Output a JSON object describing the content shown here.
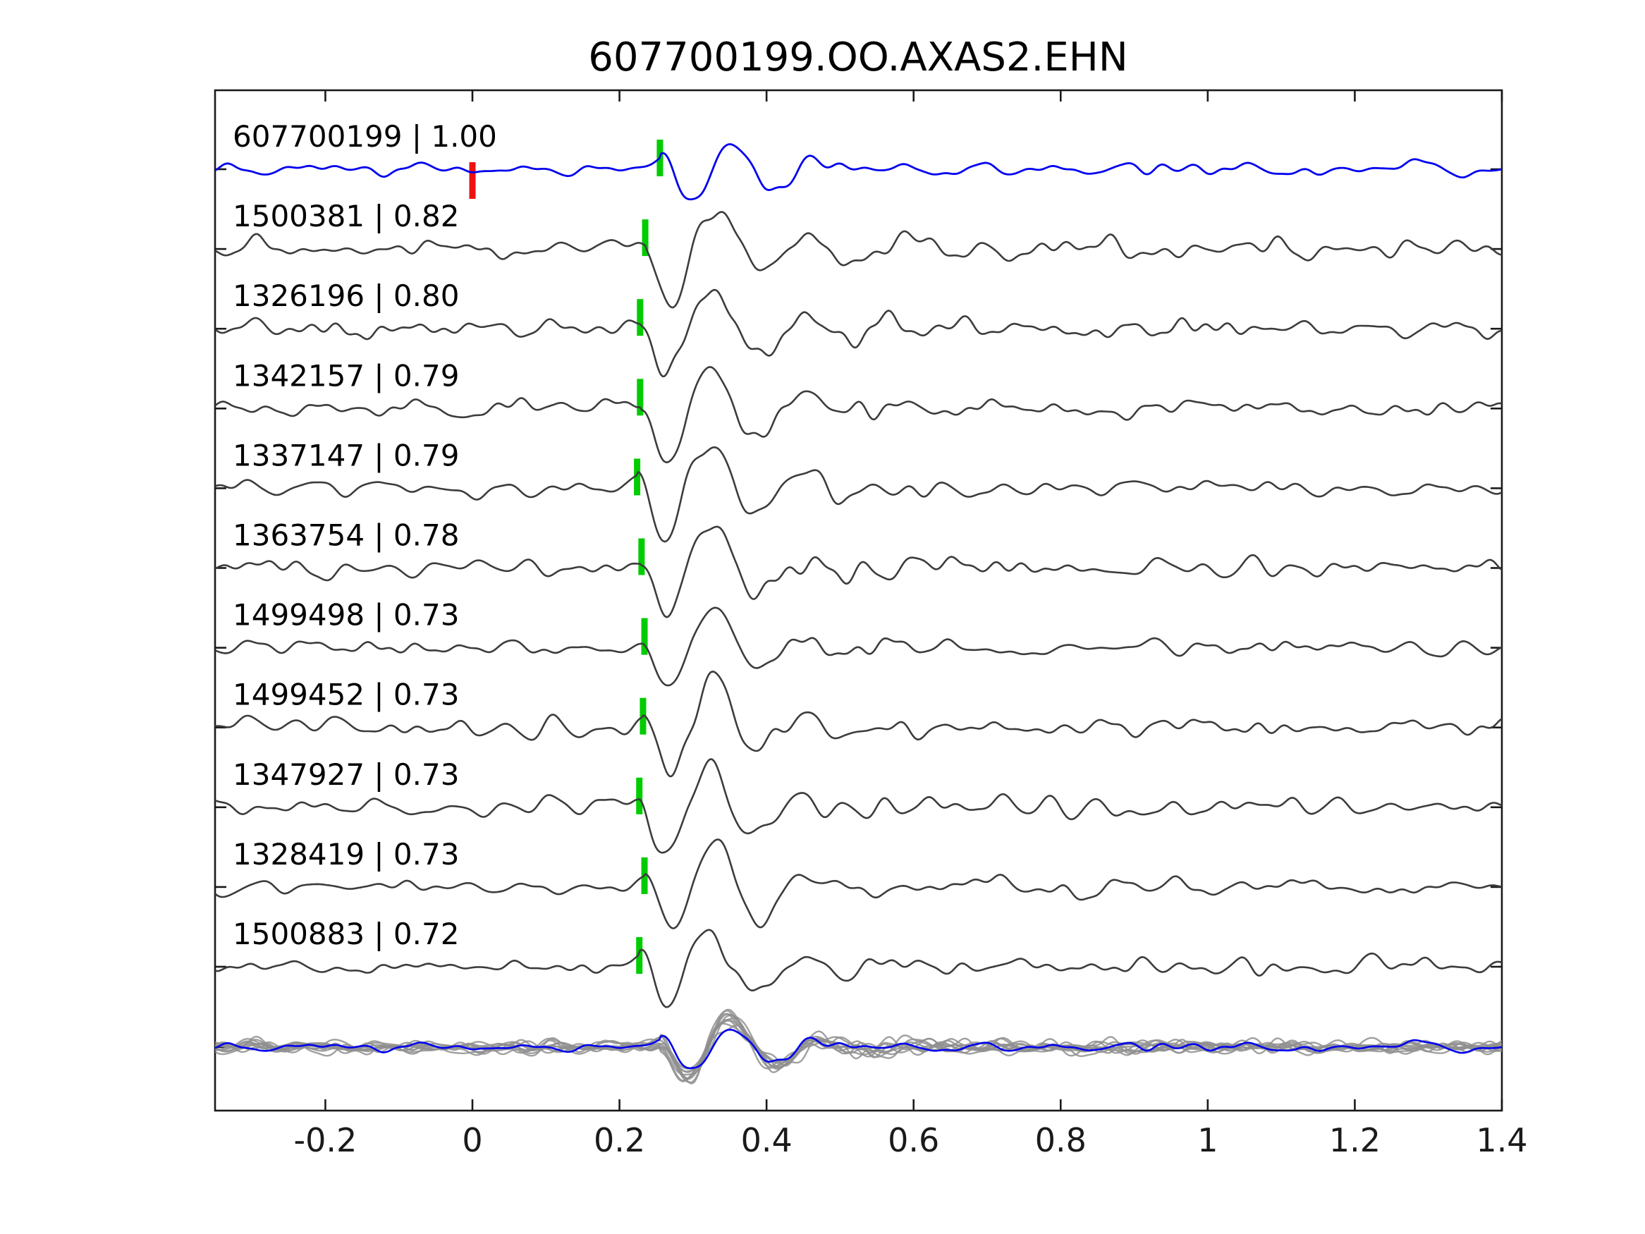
{
  "title": "607700199.OO.AXAS2.EHN",
  "chart_data": {
    "type": "line",
    "title": "607700199.OO.AXAS2.EHN",
    "xlabel": "",
    "ylabel": "",
    "xlim": [
      -0.35,
      1.4
    ],
    "x_ticks": [
      -0.2,
      0,
      0.2,
      0.4,
      0.6,
      0.8,
      1,
      1.2,
      1.4
    ],
    "x_tick_labels": [
      "-0.2",
      "0",
      "0.2",
      "0.4",
      "0.6",
      "0.8",
      "1",
      "1.2",
      "1.4"
    ],
    "grid": false,
    "legend": false,
    "axes_color": "#1a1a1a",
    "trace_color": "#3c3c3c",
    "pick_marker_color": "#00cc00",
    "reference_trace": {
      "id": "607700199",
      "correlation": 1.0,
      "label": "607700199 | 1.00",
      "color": "#0000ee",
      "pick_time": 0.255,
      "origin_marker_time": 0.0,
      "origin_marker_color": "#ee1111"
    },
    "traces": [
      {
        "id": "1500381",
        "correlation": 0.82,
        "label": "1500381 | 0.82",
        "pick_time": 0.235
      },
      {
        "id": "1326196",
        "correlation": 0.8,
        "label": "1326196 | 0.80",
        "pick_time": 0.228
      },
      {
        "id": "1342157",
        "correlation": 0.79,
        "label": "1342157 | 0.79",
        "pick_time": 0.228
      },
      {
        "id": "1337147",
        "correlation": 0.79,
        "label": "1337147 | 0.79",
        "pick_time": 0.224
      },
      {
        "id": "1363754",
        "correlation": 0.78,
        "label": "1363754 | 0.78",
        "pick_time": 0.23
      },
      {
        "id": "1499498",
        "correlation": 0.73,
        "label": "1499498 | 0.73",
        "pick_time": 0.234
      },
      {
        "id": "1499452",
        "correlation": 0.73,
        "label": "1499452 | 0.73",
        "pick_time": 0.232
      },
      {
        "id": "1347927",
        "correlation": 0.73,
        "label": "1347927 | 0.73",
        "pick_time": 0.227
      },
      {
        "id": "1328419",
        "correlation": 0.73,
        "label": "1328419 | 0.73",
        "pick_time": 0.234
      },
      {
        "id": "1500883",
        "correlation": 0.72,
        "label": "1500883 | 0.72",
        "pick_time": 0.227
      }
    ],
    "overlay_stack": {
      "description": "all traces overlaid at bottom, aligned on pick",
      "gray_color": "#8f8f8f",
      "highlight_color": "#0000ee",
      "amplitude_scale": 0.7
    }
  }
}
